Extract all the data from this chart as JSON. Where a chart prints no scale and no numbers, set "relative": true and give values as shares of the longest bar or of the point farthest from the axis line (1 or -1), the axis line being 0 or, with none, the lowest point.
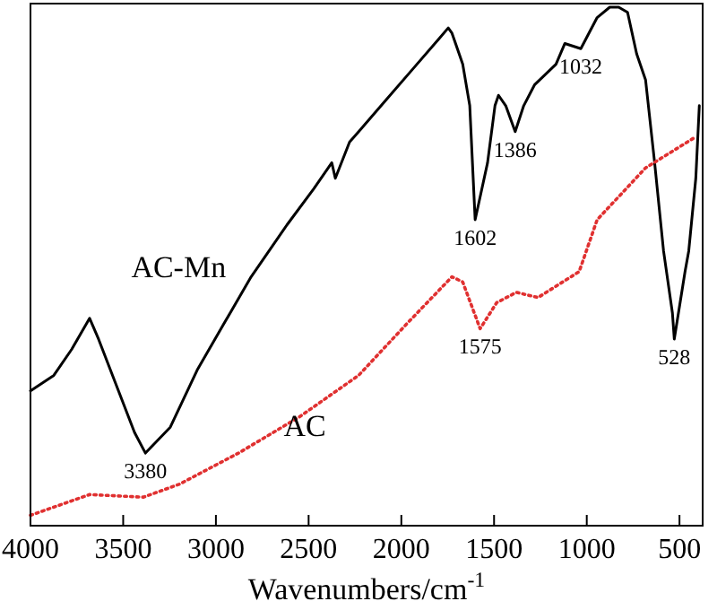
{
  "chart_data": {
    "type": "line",
    "xlabel": "Wavenumbers/cm$^{-1}$",
    "relative": true,
    "xlim": [
      4000,
      375
    ],
    "xticks": [
      4000,
      3500,
      3000,
      2500,
      2000,
      1500,
      1000,
      500
    ],
    "grid": false,
    "marker": "none",
    "series": [
      {
        "name": "AC-Mn",
        "color": "#000000",
        "line_style": "solid",
        "x": [
          4000,
          3874,
          3778,
          3681,
          3633,
          3536,
          3439,
          3380,
          3246,
          3101,
          2956,
          2810,
          2617,
          2472,
          2375,
          2356,
          2279,
          2230,
          2085,
          1940,
          1795,
          1747,
          1727,
          1669,
          1631,
          1602,
          1535,
          1495,
          1476,
          1437,
          1386,
          1340,
          1282,
          1166,
          1118,
          1032,
          944,
          876,
          828,
          780,
          731,
          683,
          634,
          586,
          538,
          528,
          470,
          450,
          412,
          393
        ],
        "values": [
          0.26,
          0.29,
          0.34,
          0.4,
          0.36,
          0.27,
          0.18,
          0.14,
          0.19,
          0.3,
          0.39,
          0.48,
          0.58,
          0.65,
          0.7,
          0.67,
          0.74,
          0.76,
          0.82,
          0.88,
          0.94,
          0.96,
          0.95,
          0.89,
          0.81,
          0.59,
          0.7,
          0.81,
          0.83,
          0.81,
          0.76,
          0.81,
          0.85,
          0.89,
          0.93,
          0.92,
          0.98,
          1.0,
          1.0,
          0.99,
          0.91,
          0.86,
          0.7,
          0.53,
          0.41,
          0.36,
          0.49,
          0.53,
          0.67,
          0.81
        ]
      },
      {
        "name": "AC",
        "color": "#e03030",
        "line_style": "dotted",
        "x": [
          4000,
          3681,
          3391,
          3197,
          2878,
          2549,
          2230,
          1969,
          1727,
          1669,
          1575,
          1486,
          1380,
          1263,
          1041,
          944,
          683,
          412
        ],
        "values": [
          0.02,
          0.06,
          0.055,
          0.08,
          0.14,
          0.21,
          0.29,
          0.39,
          0.48,
          0.47,
          0.38,
          0.43,
          0.45,
          0.44,
          0.49,
          0.59,
          0.69,
          0.75
        ]
      }
    ],
    "annotations": [
      {
        "text": "3380",
        "x": 3380,
        "y": 0.14
      },
      {
        "text": "1602",
        "x": 1602,
        "y": 0.59
      },
      {
        "text": "1386",
        "x": 1386,
        "y": 0.76
      },
      {
        "text": "1032",
        "x": 1032,
        "y": 0.92
      },
      {
        "text": "528",
        "x": 528,
        "y": 0.36
      },
      {
        "text": "1575",
        "x": 1575,
        "y": 0.38
      }
    ]
  }
}
